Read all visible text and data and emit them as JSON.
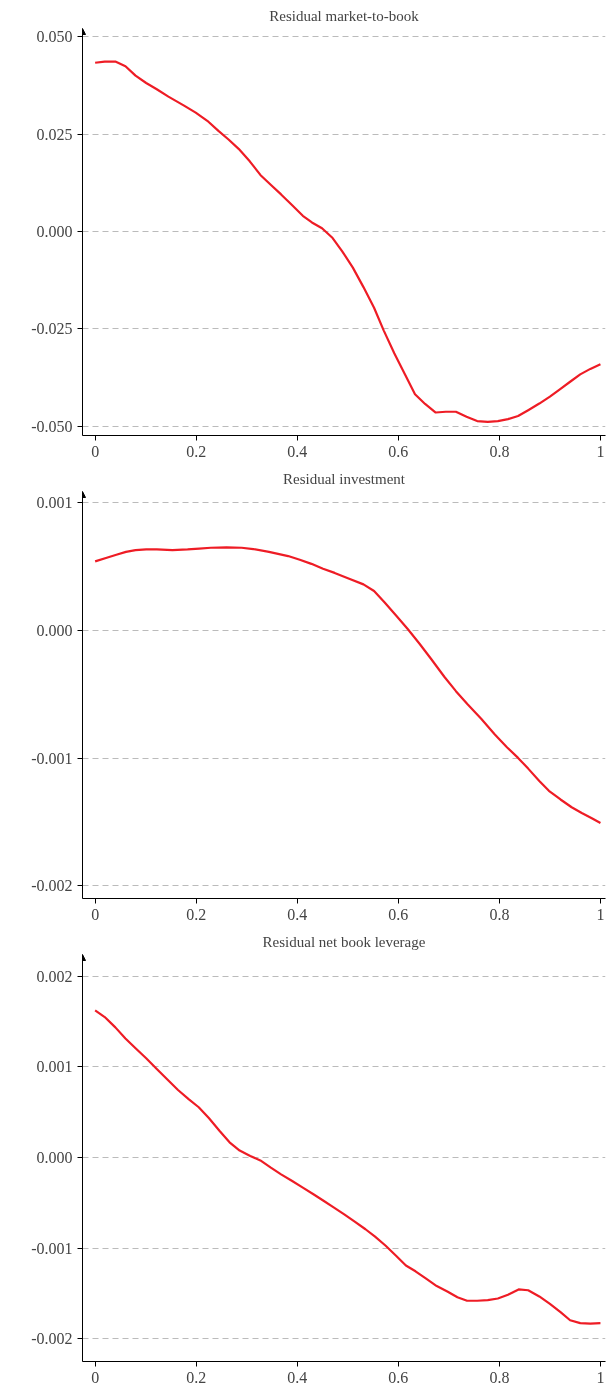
{
  "chart_data": [
    {
      "type": "line",
      "title": "Residual market-to-book",
      "xlim": [
        -0.025,
        1.01
      ],
      "ylim": [
        -0.0524,
        0.0521
      ],
      "xticks": [
        0,
        0.2,
        0.4,
        0.6,
        0.8,
        1
      ],
      "yticks": [
        {
          "value": -0.05,
          "label": "-0.050"
        },
        {
          "value": -0.025,
          "label": "-0.025"
        },
        {
          "value": 0,
          "label": "0.000"
        },
        {
          "value": 0.025,
          "label": "0.025"
        },
        {
          "value": 0.05,
          "label": "0.050"
        }
      ],
      "grid": "y",
      "line_style": "solid",
      "marker": "none",
      "x": [
        0,
        0.019,
        0.04,
        0.06,
        0.08,
        0.101,
        0.122,
        0.145,
        0.176,
        0.199,
        0.222,
        0.244,
        0.264,
        0.284,
        0.306,
        0.327,
        0.348,
        0.368,
        0.39,
        0.411,
        0.429,
        0.449,
        0.47,
        0.489,
        0.51,
        0.531,
        0.552,
        0.571,
        0.592,
        0.613,
        0.633,
        0.653,
        0.674,
        0.694,
        0.714,
        0.735,
        0.756,
        0.777,
        0.797,
        0.817,
        0.837,
        0.857,
        0.879,
        0.9,
        0.921,
        0.94,
        0.96,
        0.98,
        1
      ],
      "series": [
        {
          "color": "#ee1c25",
          "values": [
            0.0433,
            0.0436,
            0.0436,
            0.0424,
            0.04,
            0.0381,
            0.0365,
            0.0346,
            0.0323,
            0.0305,
            0.0284,
            0.0258,
            0.0236,
            0.0212,
            0.018,
            0.0145,
            0.0119,
            0.0095,
            0.0067,
            0.004,
            0.0023,
            0.0008,
            -0.0017,
            -0.0051,
            -0.0093,
            -0.0143,
            -0.0196,
            -0.0254,
            -0.0313,
            -0.0367,
            -0.0418,
            -0.0443,
            -0.0465,
            -0.0463,
            -0.0463,
            -0.0476,
            -0.0487,
            -0.0489,
            -0.0487,
            -0.0482,
            -0.0474,
            -0.0459,
            -0.0442,
            -0.0424,
            -0.0404,
            -0.0386,
            -0.0367,
            -0.0353,
            -0.0341
          ]
        }
      ]
    },
    {
      "type": "line",
      "title": "Residual investment",
      "xlim": [
        -0.025,
        1.01
      ],
      "ylim": [
        -0.0021,
        0.00109
      ],
      "xticks": [
        0,
        0.2,
        0.4,
        0.6,
        0.8,
        1
      ],
      "yticks": [
        {
          "value": -0.002,
          "label": "-0.002"
        },
        {
          "value": -0.001,
          "label": "-0.001"
        },
        {
          "value": 0,
          "label": "0.000"
        },
        {
          "value": 0.001,
          "label": "0.001"
        }
      ],
      "grid": "y",
      "line_style": "solid",
      "marker": "none",
      "x": [
        0,
        0.023,
        0.042,
        0.061,
        0.08,
        0.101,
        0.122,
        0.153,
        0.183,
        0.206,
        0.229,
        0.26,
        0.29,
        0.313,
        0.344,
        0.382,
        0.405,
        0.428,
        0.451,
        0.474,
        0.504,
        0.531,
        0.552,
        0.573,
        0.596,
        0.619,
        0.642,
        0.665,
        0.691,
        0.714,
        0.737,
        0.764,
        0.791,
        0.814,
        0.837,
        0.857,
        0.879,
        0.898,
        0.921,
        0.943,
        0.963,
        0.982,
        1
      ],
      "series": [
        {
          "color": "#ee1c25",
          "values": [
            0.000542,
            0.000571,
            0.000594,
            0.000617,
            0.00063,
            0.000636,
            0.000636,
            0.00063,
            0.000636,
            0.000643,
            0.000649,
            0.000652,
            0.000649,
            0.000639,
            0.000617,
            0.000584,
            0.000555,
            0.000523,
            0.000484,
            0.000452,
            0.000404,
            0.000362,
            0.00031,
            0.00022,
            0.000116,
            1e-05,
            -0.000103,
            -0.000223,
            -0.000362,
            -0.000475,
            -0.000578,
            -0.000691,
            -0.000814,
            -0.000911,
            -0.000998,
            -0.001082,
            -0.001179,
            -0.001256,
            -0.001324,
            -0.001385,
            -0.00143,
            -0.001469,
            -0.001508
          ]
        }
      ]
    },
    {
      "type": "line",
      "title": "Residual net book leverage",
      "xlim": [
        -0.025,
        1.01
      ],
      "ylim": [
        -0.00225,
        0.00224
      ],
      "xticks": [
        0,
        0.2,
        0.4,
        0.6,
        0.8,
        1
      ],
      "yticks": [
        {
          "value": -0.002,
          "label": "-0.002"
        },
        {
          "value": -0.001,
          "label": "-0.001"
        },
        {
          "value": 0,
          "label": "0.000"
        },
        {
          "value": 0.001,
          "label": "0.001"
        },
        {
          "value": 0.002,
          "label": "0.002"
        }
      ],
      "grid": "y",
      "line_style": "solid",
      "marker": "none",
      "x": [
        0,
        0.019,
        0.04,
        0.06,
        0.08,
        0.101,
        0.122,
        0.144,
        0.164,
        0.185,
        0.205,
        0.225,
        0.246,
        0.266,
        0.286,
        0.307,
        0.327,
        0.347,
        0.368,
        0.39,
        0.411,
        0.432,
        0.452,
        0.472,
        0.493,
        0.513,
        0.535,
        0.554,
        0.575,
        0.596,
        0.615,
        0.634,
        0.655,
        0.676,
        0.697,
        0.717,
        0.736,
        0.756,
        0.777,
        0.797,
        0.817,
        0.838,
        0.857,
        0.879,
        0.9,
        0.921,
        0.94,
        0.96,
        0.98,
        1
      ],
      "series": [
        {
          "color": "#ee1c25",
          "values": [
            0.001623,
            0.00155,
            0.001436,
            0.001314,
            0.001205,
            0.001095,
            0.000977,
            0.000855,
            0.000745,
            0.000645,
            0.000555,
            0.000436,
            0.000295,
            0.000168,
            7.7e-05,
            1.8e-05,
            -3.2e-05,
            -0.000109,
            -0.000186,
            -0.000259,
            -0.000332,
            -0.000405,
            -0.000477,
            -0.00055,
            -0.000627,
            -0.000705,
            -0.000791,
            -0.000873,
            -0.000973,
            -0.001086,
            -0.001191,
            -0.001255,
            -0.001336,
            -0.001418,
            -0.001477,
            -0.001541,
            -0.00158,
            -0.00158,
            -0.001573,
            -0.001555,
            -0.001514,
            -0.001455,
            -0.001464,
            -0.001532,
            -0.001614,
            -0.001705,
            -0.001795,
            -0.001827,
            -0.001832,
            -0.001827
          ]
        }
      ]
    }
  ]
}
